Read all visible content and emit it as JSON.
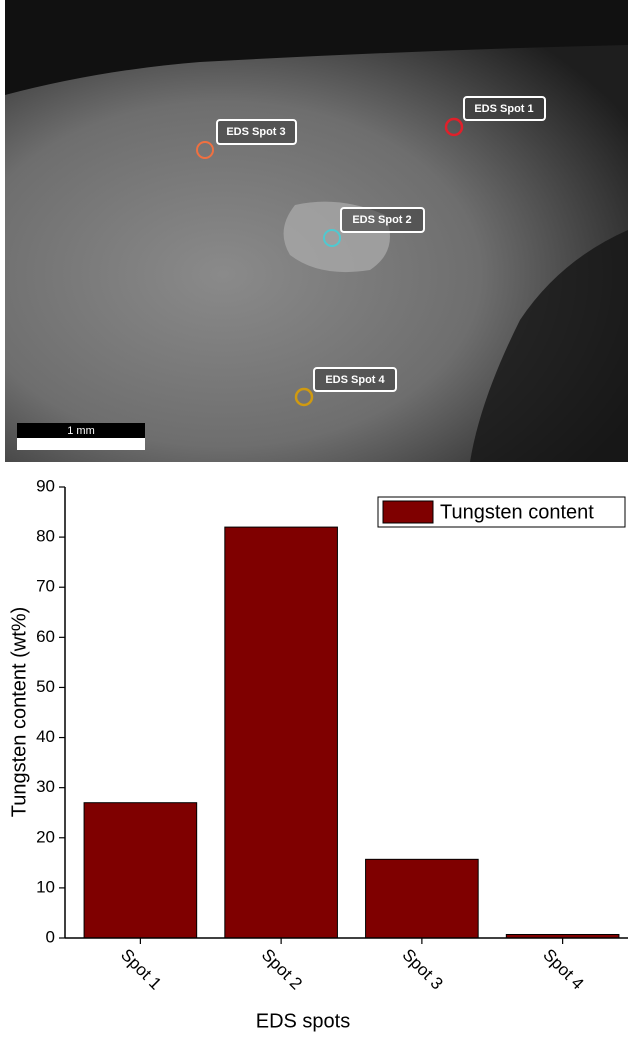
{
  "image": {
    "labels": [
      "EDS Spot 1",
      "EDS Spot 2",
      "EDS Spot 3",
      "EDS Spot 4"
    ],
    "scale_bar": "1 mm"
  },
  "chart_data": {
    "type": "bar",
    "categories": [
      "Spot 1",
      "Spot 2",
      "Spot 3",
      "Spot 4"
    ],
    "series": [
      {
        "name": "Tungsten content",
        "color": "#7f0000",
        "values": [
          27,
          82,
          15.7,
          0.7
        ]
      }
    ],
    "xlabel": "EDS spots",
    "ylabel": "Tungsten content (wt%)",
    "ylim": [
      0,
      90
    ],
    "yticks": [
      0,
      10,
      20,
      30,
      40,
      50,
      60,
      70,
      80,
      90
    ],
    "legend": "upper right",
    "grid": false
  }
}
